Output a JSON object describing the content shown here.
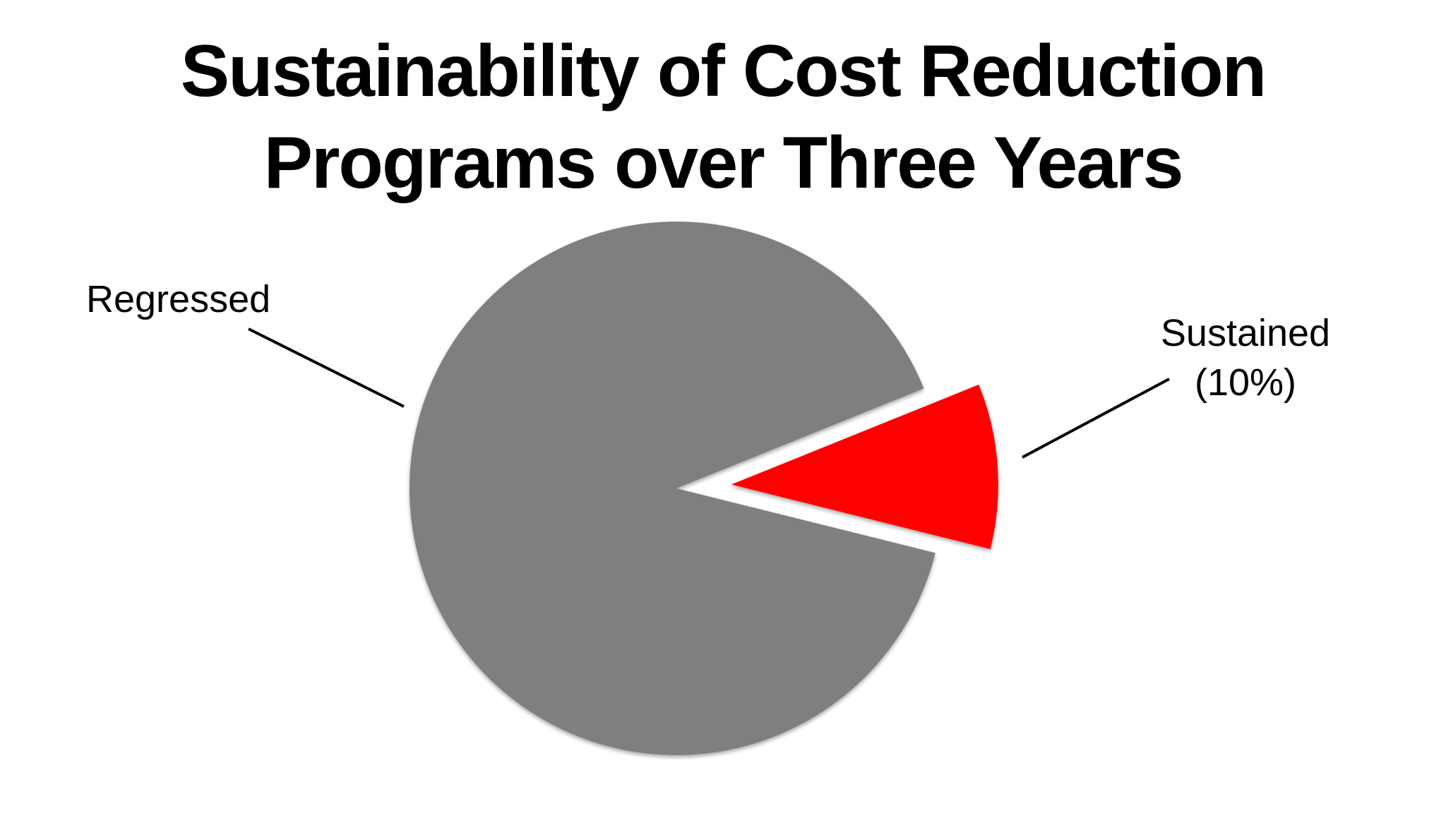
{
  "chart_data": {
    "type": "pie",
    "title": [
      "Sustainability of Cost Reduction",
      "Programs over Three Years"
    ],
    "slices": [
      {
        "label": "Regressed",
        "value": 90,
        "color": "#7f7f7f",
        "exploded": false
      },
      {
        "label": "Sustained",
        "sublabel": "(10%)",
        "value": 10,
        "color": "#ff0000",
        "exploded": true
      }
    ],
    "legend": "none"
  }
}
